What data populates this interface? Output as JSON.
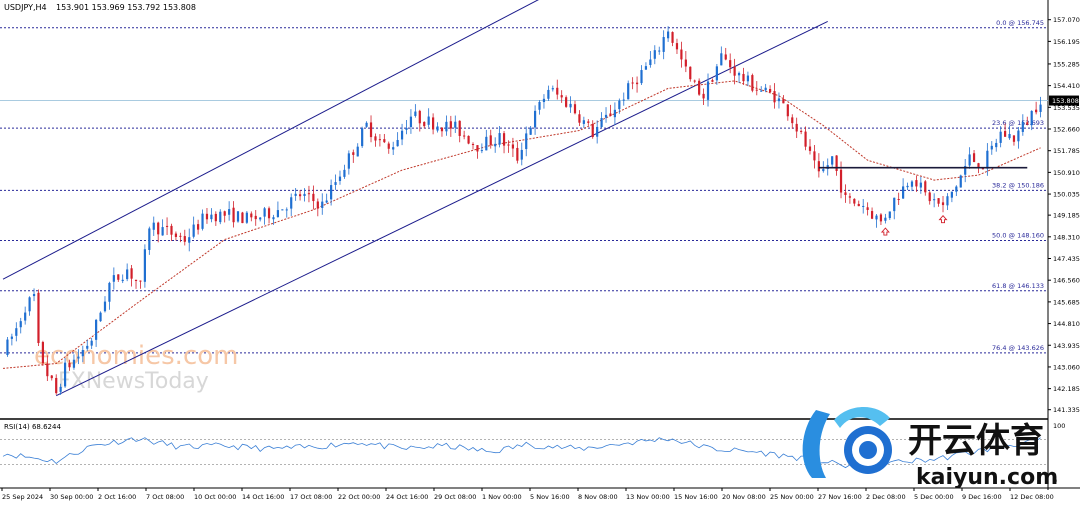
{
  "header": {
    "symbol": "USDJPY,H4",
    "ohlc": "153.901 153.969 153.792 153.808"
  },
  "watermarks": {
    "economies": "economies.com",
    "fxnews": "FXNewsToday",
    "brand_cn": "开云体育",
    "brand_url": "kaiyun.com"
  },
  "colors": {
    "bull": "#1f6fd1",
    "bear": "#d21f2a",
    "channel": "#1c1c8c",
    "fib": "#2a2a9a",
    "ma": "#c0392b",
    "rsi": "#3a7fd5",
    "level": "#1a1a3a"
  },
  "chart_data": [
    {
      "type": "candlestick",
      "title": "USDJPY,H4",
      "ylim": [
        141.0,
        157.3
      ],
      "x_labels": [
        "25 Sep 2024",
        "30 Sep 00:00",
        "2 Oct 16:00",
        "7 Oct 08:00",
        "10 Oct 00:00",
        "14 Oct 16:00",
        "17 Oct 08:00",
        "22 Oct 00:00",
        "24 Oct 16:00",
        "29 Oct 08:00",
        "1 Nov 00:00",
        "5 Nov 16:00",
        "8 Nov 08:00",
        "13 Nov 00:00",
        "15 Nov 16:00",
        "20 Nov 08:00",
        "25 Nov 00:00",
        "27 Nov 16:00",
        "2 Dec 08:00",
        "5 Dec 00:00",
        "9 Dec 16:00",
        "12 Dec 08:00"
      ],
      "y_ticks": [
        "157.070",
        "156.195",
        "155.285",
        "154.410",
        "153.535",
        "152.660",
        "151.785",
        "150.910",
        "150.035",
        "149.185",
        "148.310",
        "147.435",
        "146.560",
        "145.685",
        "144.810",
        "143.935",
        "143.060",
        "142.185",
        "141.335"
      ],
      "current_price": "153.808",
      "anchors": [
        [
          0,
          143.6
        ],
        [
          3,
          144.6
        ],
        [
          5,
          145.5
        ],
        [
          7,
          145.9
        ],
        [
          8,
          143.8
        ],
        [
          10,
          142.8
        ],
        [
          12,
          142.0
        ],
        [
          14,
          143.0
        ],
        [
          17,
          143.5
        ],
        [
          20,
          144.2
        ],
        [
          24,
          146.4
        ],
        [
          28,
          147.0
        ],
        [
          31,
          146.3
        ],
        [
          33,
          148.8
        ],
        [
          36,
          148.6
        ],
        [
          41,
          148.2
        ],
        [
          46,
          149.2
        ],
        [
          51,
          149.2
        ],
        [
          56,
          149.0
        ],
        [
          62,
          149.4
        ],
        [
          67,
          150.0
        ],
        [
          72,
          149.6
        ],
        [
          78,
          151.5
        ],
        [
          82,
          152.8
        ],
        [
          87,
          151.8
        ],
        [
          92,
          153.2
        ],
        [
          97,
          152.9
        ],
        [
          102,
          152.7
        ],
        [
          107,
          152.0
        ],
        [
          112,
          152.3
        ],
        [
          116,
          151.5
        ],
        [
          118,
          152.5
        ],
        [
          123,
          154.3
        ],
        [
          128,
          153.6
        ],
        [
          133,
          152.5
        ],
        [
          137,
          153.3
        ],
        [
          142,
          154.5
        ],
        [
          147,
          155.6
        ],
        [
          150,
          156.7
        ],
        [
          152,
          155.8
        ],
        [
          155,
          154.6
        ],
        [
          158,
          154.0
        ],
        [
          162,
          155.6
        ],
        [
          166,
          154.8
        ],
        [
          170,
          154.3
        ],
        [
          174,
          154.0
        ],
        [
          177,
          153.4
        ],
        [
          181,
          152.0
        ],
        [
          184,
          150.7
        ],
        [
          187,
          151.5
        ],
        [
          190,
          149.8
        ],
        [
          194,
          149.6
        ],
        [
          198,
          148.9
        ],
        [
          201,
          149.8
        ],
        [
          205,
          150.8
        ],
        [
          208,
          150.0
        ],
        [
          212,
          149.5
        ],
        [
          215,
          150.4
        ],
        [
          218,
          151.5
        ],
        [
          221,
          151.2
        ],
        [
          225,
          152.5
        ],
        [
          228,
          152.3
        ],
        [
          231,
          153.0
        ],
        [
          234,
          153.9
        ]
      ],
      "moving_average": [
        [
          0,
          143.0
        ],
        [
          12,
          143.2
        ],
        [
          30,
          145.6
        ],
        [
          50,
          148.2
        ],
        [
          70,
          149.4
        ],
        [
          90,
          151.0
        ],
        [
          110,
          152.0
        ],
        [
          130,
          152.6
        ],
        [
          150,
          154.3
        ],
        [
          165,
          154.6
        ],
        [
          175,
          154.0
        ],
        [
          185,
          152.8
        ],
        [
          195,
          151.4
        ],
        [
          210,
          150.6
        ],
        [
          220,
          150.8
        ],
        [
          234,
          151.9
        ]
      ],
      "channel_lines": [
        [
          [
            0,
            146.6
          ],
          [
            121,
            157.9
          ]
        ],
        [
          [
            12,
            141.9
          ],
          [
            186,
            157.0
          ]
        ]
      ],
      "horizontal_level": [
        [
          184,
          151.1
        ],
        [
          231,
          151.1
        ]
      ],
      "markers": [
        [
          199,
          148.5
        ],
        [
          212,
          149.0
        ]
      ],
      "fib_levels": [
        {
          "label": "0.0 @ 156.745",
          "price": 156.745
        },
        {
          "label": "23.6 @ 152.693",
          "price": 152.693
        },
        {
          "label": "38.2 @ 150.186",
          "price": 150.186
        },
        {
          "label": "50.0 @ 148.160",
          "price": 148.16
        },
        {
          "label": "61.8 @ 146.133",
          "price": 146.133
        },
        {
          "label": "76.4 @ 143.626",
          "price": 143.626
        }
      ]
    },
    {
      "type": "line",
      "title": "RSI(14) 68.6244",
      "ylim": [
        0,
        100
      ],
      "y_ticks": [
        "100",
        "0"
      ],
      "levels": [
        70,
        30
      ],
      "anchors": [
        [
          0,
          48
        ],
        [
          12,
          35
        ],
        [
          20,
          60
        ],
        [
          30,
          72
        ],
        [
          40,
          58
        ],
        [
          50,
          60
        ],
        [
          60,
          55
        ],
        [
          70,
          58
        ],
        [
          80,
          66
        ],
        [
          90,
          55
        ],
        [
          100,
          60
        ],
        [
          110,
          50
        ],
        [
          118,
          62
        ],
        [
          130,
          55
        ],
        [
          145,
          68
        ],
        [
          150,
          72
        ],
        [
          160,
          55
        ],
        [
          170,
          50
        ],
        [
          180,
          40
        ],
        [
          190,
          28
        ],
        [
          200,
          33
        ],
        [
          210,
          38
        ],
        [
          220,
          52
        ],
        [
          228,
          62
        ],
        [
          234,
          68.6
        ]
      ]
    }
  ]
}
